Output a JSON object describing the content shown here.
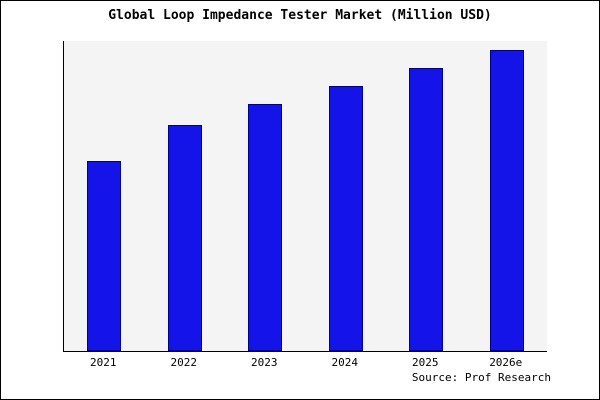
{
  "title": "Global Loop Impedance Tester Market (Million USD)",
  "source": "Source: Prof Research",
  "chart_data": {
    "type": "bar",
    "title": "Global Loop Impedance Tester Market (Million USD)",
    "categories": [
      "2021",
      "2022",
      "2023",
      "2024",
      "2025",
      "2026e"
    ],
    "values": [
      63,
      75,
      82,
      88,
      94,
      100
    ],
    "xlabel": "",
    "ylabel": "",
    "ylim": [
      0,
      103
    ],
    "y_axis_labels_visible": false,
    "grid": false,
    "legend": false,
    "bar_color": "#1414e8",
    "bar_border_color": "#00008b",
    "plot_background": "#f4f4f4",
    "source_annotation": "Source: Prof Research"
  }
}
